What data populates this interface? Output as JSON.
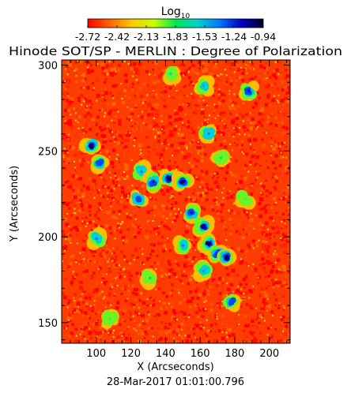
{
  "chart_data": {
    "type": "heatmap",
    "title": "Hinode SOT/SP - MERLIN : Degree of Polarization",
    "colorbar": {
      "label": "Log",
      "label_subscript": "10",
      "tick_labels": [
        "-2.72",
        "-2.42",
        "-2.13",
        "-1.83",
        "-1.53",
        "-1.24",
        "-0.94"
      ],
      "range": [
        -2.72,
        -0.94
      ],
      "colors": [
        "#ff0000",
        "#ff6400",
        "#ffc800",
        "#c8ff00",
        "#00e650",
        "#00d2d2",
        "#0078ff",
        "#0000c8",
        "#000028"
      ]
    },
    "xlabel": "X (Arcseconds)",
    "ylabel": "Y (Arcseconds)",
    "xlim": [
      80,
      212
    ],
    "ylim": [
      138,
      303
    ],
    "x_ticks": [
      100,
      120,
      140,
      160,
      180,
      200
    ],
    "y_ticks": [
      150,
      200,
      250,
      300
    ],
    "background_level": -2.65,
    "high_polarization_regions": [
      {
        "x": 97,
        "y": 253,
        "level": -1.0
      },
      {
        "x": 102,
        "y": 243,
        "level": -1.3
      },
      {
        "x": 126,
        "y": 238,
        "level": -1.4
      },
      {
        "x": 133,
        "y": 232,
        "level": -1.2
      },
      {
        "x": 142,
        "y": 234,
        "level": -1.0
      },
      {
        "x": 150,
        "y": 232,
        "level": -1.1
      },
      {
        "x": 124,
        "y": 222,
        "level": -1.3
      },
      {
        "x": 155,
        "y": 214,
        "level": -1.2
      },
      {
        "x": 162,
        "y": 206,
        "level": -1.1
      },
      {
        "x": 165,
        "y": 196,
        "level": -1.0
      },
      {
        "x": 170,
        "y": 190,
        "level": -1.2
      },
      {
        "x": 175,
        "y": 188,
        "level": -0.95
      },
      {
        "x": 150,
        "y": 195,
        "level": -1.4
      },
      {
        "x": 100,
        "y": 199,
        "level": -1.4
      },
      {
        "x": 162,
        "y": 180,
        "level": -1.5
      },
      {
        "x": 178,
        "y": 162,
        "level": -1.3
      },
      {
        "x": 188,
        "y": 285,
        "level": -1.2
      },
      {
        "x": 162,
        "y": 288,
        "level": -1.5
      },
      {
        "x": 165,
        "y": 260,
        "level": -1.4
      },
      {
        "x": 172,
        "y": 246,
        "level": -1.8
      },
      {
        "x": 143,
        "y": 295,
        "level": -1.7
      },
      {
        "x": 108,
        "y": 152,
        "level": -1.9
      },
      {
        "x": 131,
        "y": 176,
        "level": -1.8
      },
      {
        "x": 186,
        "y": 222,
        "level": -1.9
      }
    ]
  },
  "footer": {
    "timestamp": "28-Mar-2017 01:01:00.796"
  }
}
